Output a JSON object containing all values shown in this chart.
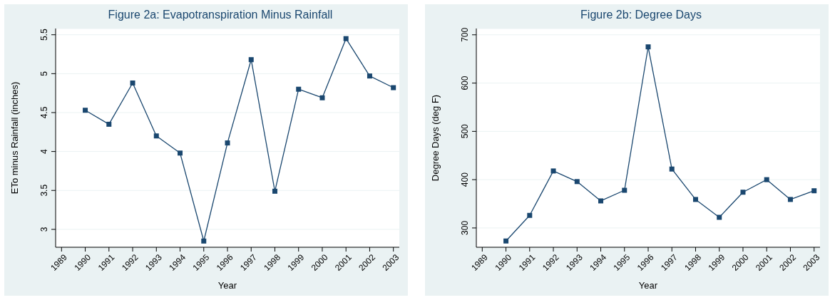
{
  "chart_data": [
    {
      "type": "line",
      "title": "Figure 2a: Evapotranspiration Minus Rainfall",
      "xlabel": "Year",
      "ylabel": "ETo minus Rainfall (inches)",
      "x": [
        1990,
        1991,
        1992,
        1993,
        1994,
        1995,
        1996,
        1997,
        1998,
        1999,
        2000,
        2001,
        2002,
        2003
      ],
      "series": [
        {
          "color": "#1a476f",
          "values": [
            4.53,
            4.35,
            4.88,
            4.2,
            3.98,
            2.85,
            4.11,
            5.18,
            3.49,
            4.8,
            4.69,
            5.45,
            4.97,
            4.82
          ]
        }
      ],
      "xlim": [
        1988.75,
        2003.25
      ],
      "xticks": [
        1989,
        1990,
        1991,
        1992,
        1993,
        1994,
        1995,
        1996,
        1997,
        1998,
        1999,
        2000,
        2001,
        2002,
        2003
      ],
      "ylim": [
        2.77,
        5.58
      ],
      "yticks": [
        3,
        3.5,
        4,
        4.5,
        5,
        5.5
      ],
      "grid": "y",
      "marker": "square",
      "line_style": "solid",
      "legend": false
    },
    {
      "type": "line",
      "title": "Figure 2b: Degree Days",
      "xlabel": "Year",
      "ylabel": "Degree Days (deg F)",
      "x": [
        1990,
        1991,
        1992,
        1993,
        1994,
        1995,
        1996,
        1997,
        1998,
        1999,
        2000,
        2001,
        2002,
        2003
      ],
      "series": [
        {
          "color": "#1a476f",
          "values": [
            273,
            326,
            418,
            396,
            356,
            378,
            675,
            422,
            359,
            322,
            374,
            400,
            359,
            377
          ]
        }
      ],
      "xlim": [
        1988.75,
        2003.25
      ],
      "xticks": [
        1989,
        1990,
        1991,
        1992,
        1993,
        1994,
        1995,
        1996,
        1997,
        1998,
        1999,
        2000,
        2001,
        2002,
        2003
      ],
      "ylim": [
        260,
        713
      ],
      "yticks": [
        300,
        400,
        500,
        600,
        700
      ],
      "grid": "y",
      "marker": "square",
      "line_style": "solid",
      "legend": false
    }
  ]
}
